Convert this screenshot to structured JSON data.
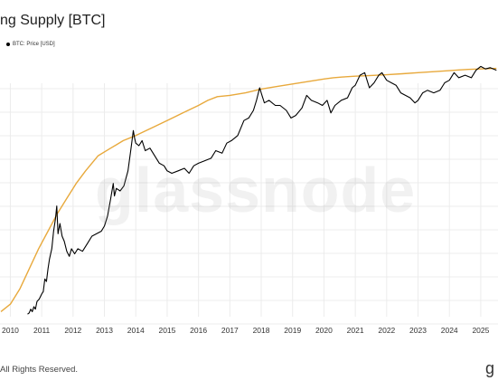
{
  "page": {
    "title": "ng Supply [BTC]",
    "footer": "All Rights Reserved.",
    "watermark": "glassnode",
    "corner_glyph": "g"
  },
  "chart_data": {
    "type": "line",
    "title": "ng Supply [BTC]",
    "legend": [
      {
        "name": "BTC: Price [USD]",
        "color": "#000000"
      }
    ],
    "legend_position": "top-left",
    "grid": {
      "horizontal": true,
      "vertical": true
    },
    "x_ticks": [
      "2010",
      "2011",
      "2012",
      "2013",
      "2014",
      "2015",
      "2016",
      "2017",
      "2018",
      "2019",
      "2020",
      "2021",
      "2022",
      "2023",
      "2024",
      "2025"
    ],
    "xlim": [
      2009.67,
      2025.55
    ],
    "ylim": [
      0,
      1
    ],
    "y_axis_labels_visible": false,
    "series": [
      {
        "key": "supply",
        "color": "#e8a93c",
        "points": [
          [
            2009.7,
            0.02
          ],
          [
            2010.0,
            0.05
          ],
          [
            2010.3,
            0.11
          ],
          [
            2010.6,
            0.19
          ],
          [
            2010.9,
            0.27
          ],
          [
            2011.2,
            0.34
          ],
          [
            2011.5,
            0.41
          ],
          [
            2011.8,
            0.47
          ],
          [
            2012.1,
            0.53
          ],
          [
            2012.4,
            0.58
          ],
          [
            2012.8,
            0.64
          ],
          [
            2013.2,
            0.67
          ],
          [
            2013.6,
            0.7
          ],
          [
            2014.0,
            0.72
          ],
          [
            2014.5,
            0.75
          ],
          [
            2015.0,
            0.78
          ],
          [
            2015.5,
            0.81
          ],
          [
            2016.0,
            0.84
          ],
          [
            2016.3,
            0.86
          ],
          [
            2016.6,
            0.875
          ],
          [
            2017.0,
            0.88
          ],
          [
            2017.5,
            0.89
          ],
          [
            2018.0,
            0.905
          ],
          [
            2018.5,
            0.915
          ],
          [
            2019.0,
            0.925
          ],
          [
            2019.5,
            0.935
          ],
          [
            2020.0,
            0.945
          ],
          [
            2020.3,
            0.95
          ],
          [
            2020.6,
            0.953
          ],
          [
            2021.0,
            0.956
          ],
          [
            2021.5,
            0.959
          ],
          [
            2022.0,
            0.962
          ],
          [
            2022.5,
            0.966
          ],
          [
            2023.0,
            0.97
          ],
          [
            2023.5,
            0.974
          ],
          [
            2024.0,
            0.978
          ],
          [
            2024.3,
            0.981
          ],
          [
            2024.6,
            0.983
          ],
          [
            2025.0,
            0.985
          ],
          [
            2025.5,
            0.987
          ]
        ]
      },
      {
        "key": "price",
        "color": "#000000",
        "points": [
          [
            2010.55,
            0.01
          ],
          [
            2010.6,
            0.015
          ],
          [
            2010.65,
            0.03
          ],
          [
            2010.7,
            0.02
          ],
          [
            2010.75,
            0.04
          ],
          [
            2010.8,
            0.03
          ],
          [
            2010.85,
            0.06
          ],
          [
            2010.92,
            0.07
          ],
          [
            2011.0,
            0.09
          ],
          [
            2011.05,
            0.1
          ],
          [
            2011.1,
            0.15
          ],
          [
            2011.15,
            0.14
          ],
          [
            2011.2,
            0.19
          ],
          [
            2011.25,
            0.23
          ],
          [
            2011.32,
            0.27
          ],
          [
            2011.38,
            0.34
          ],
          [
            2011.44,
            0.39
          ],
          [
            2011.48,
            0.44
          ],
          [
            2011.52,
            0.33
          ],
          [
            2011.58,
            0.37
          ],
          [
            2011.65,
            0.32
          ],
          [
            2011.72,
            0.3
          ],
          [
            2011.8,
            0.26
          ],
          [
            2011.88,
            0.24
          ],
          [
            2011.95,
            0.27
          ],
          [
            2012.05,
            0.25
          ],
          [
            2012.15,
            0.27
          ],
          [
            2012.3,
            0.26
          ],
          [
            2012.45,
            0.29
          ],
          [
            2012.6,
            0.32
          ],
          [
            2012.75,
            0.33
          ],
          [
            2012.9,
            0.34
          ],
          [
            2013.0,
            0.36
          ],
          [
            2013.1,
            0.4
          ],
          [
            2013.2,
            0.47
          ],
          [
            2013.28,
            0.53
          ],
          [
            2013.32,
            0.48
          ],
          [
            2013.38,
            0.51
          ],
          [
            2013.5,
            0.5
          ],
          [
            2013.62,
            0.52
          ],
          [
            2013.75,
            0.58
          ],
          [
            2013.85,
            0.67
          ],
          [
            2013.92,
            0.74
          ],
          [
            2013.96,
            0.71
          ],
          [
            2014.0,
            0.69
          ],
          [
            2014.1,
            0.68
          ],
          [
            2014.2,
            0.7
          ],
          [
            2014.3,
            0.66
          ],
          [
            2014.45,
            0.67
          ],
          [
            2014.6,
            0.64
          ],
          [
            2014.75,
            0.61
          ],
          [
            2014.9,
            0.6
          ],
          [
            2015.0,
            0.58
          ],
          [
            2015.15,
            0.57
          ],
          [
            2015.35,
            0.58
          ],
          [
            2015.55,
            0.59
          ],
          [
            2015.7,
            0.57
          ],
          [
            2015.85,
            0.6
          ],
          [
            2016.0,
            0.61
          ],
          [
            2016.2,
            0.62
          ],
          [
            2016.4,
            0.63
          ],
          [
            2016.55,
            0.66
          ],
          [
            2016.75,
            0.65
          ],
          [
            2016.9,
            0.69
          ],
          [
            2017.05,
            0.7
          ],
          [
            2017.25,
            0.72
          ],
          [
            2017.45,
            0.78
          ],
          [
            2017.6,
            0.79
          ],
          [
            2017.75,
            0.82
          ],
          [
            2017.85,
            0.86
          ],
          [
            2017.95,
            0.91
          ],
          [
            2018.0,
            0.89
          ],
          [
            2018.1,
            0.85
          ],
          [
            2018.25,
            0.86
          ],
          [
            2018.45,
            0.84
          ],
          [
            2018.6,
            0.84
          ],
          [
            2018.8,
            0.82
          ],
          [
            2018.95,
            0.79
          ],
          [
            2019.1,
            0.8
          ],
          [
            2019.3,
            0.83
          ],
          [
            2019.45,
            0.88
          ],
          [
            2019.6,
            0.86
          ],
          [
            2019.8,
            0.85
          ],
          [
            2019.95,
            0.84
          ],
          [
            2020.1,
            0.86
          ],
          [
            2020.22,
            0.81
          ],
          [
            2020.35,
            0.84
          ],
          [
            2020.55,
            0.86
          ],
          [
            2020.75,
            0.87
          ],
          [
            2020.9,
            0.91
          ],
          [
            2021.0,
            0.92
          ],
          [
            2021.15,
            0.96
          ],
          [
            2021.3,
            0.97
          ],
          [
            2021.45,
            0.91
          ],
          [
            2021.6,
            0.93
          ],
          [
            2021.75,
            0.96
          ],
          [
            2021.85,
            0.97
          ],
          [
            2022.0,
            0.94
          ],
          [
            2022.15,
            0.93
          ],
          [
            2022.3,
            0.92
          ],
          [
            2022.45,
            0.89
          ],
          [
            2022.6,
            0.88
          ],
          [
            2022.75,
            0.87
          ],
          [
            2022.9,
            0.85
          ],
          [
            2023.0,
            0.86
          ],
          [
            2023.15,
            0.89
          ],
          [
            2023.3,
            0.9
          ],
          [
            2023.5,
            0.89
          ],
          [
            2023.7,
            0.9
          ],
          [
            2023.85,
            0.93
          ],
          [
            2024.0,
            0.94
          ],
          [
            2024.15,
            0.97
          ],
          [
            2024.3,
            0.95
          ],
          [
            2024.5,
            0.96
          ],
          [
            2024.7,
            0.95
          ],
          [
            2024.85,
            0.98
          ],
          [
            2025.0,
            0.995
          ],
          [
            2025.15,
            0.985
          ],
          [
            2025.3,
            0.99
          ],
          [
            2025.5,
            0.98
          ]
        ]
      }
    ]
  }
}
